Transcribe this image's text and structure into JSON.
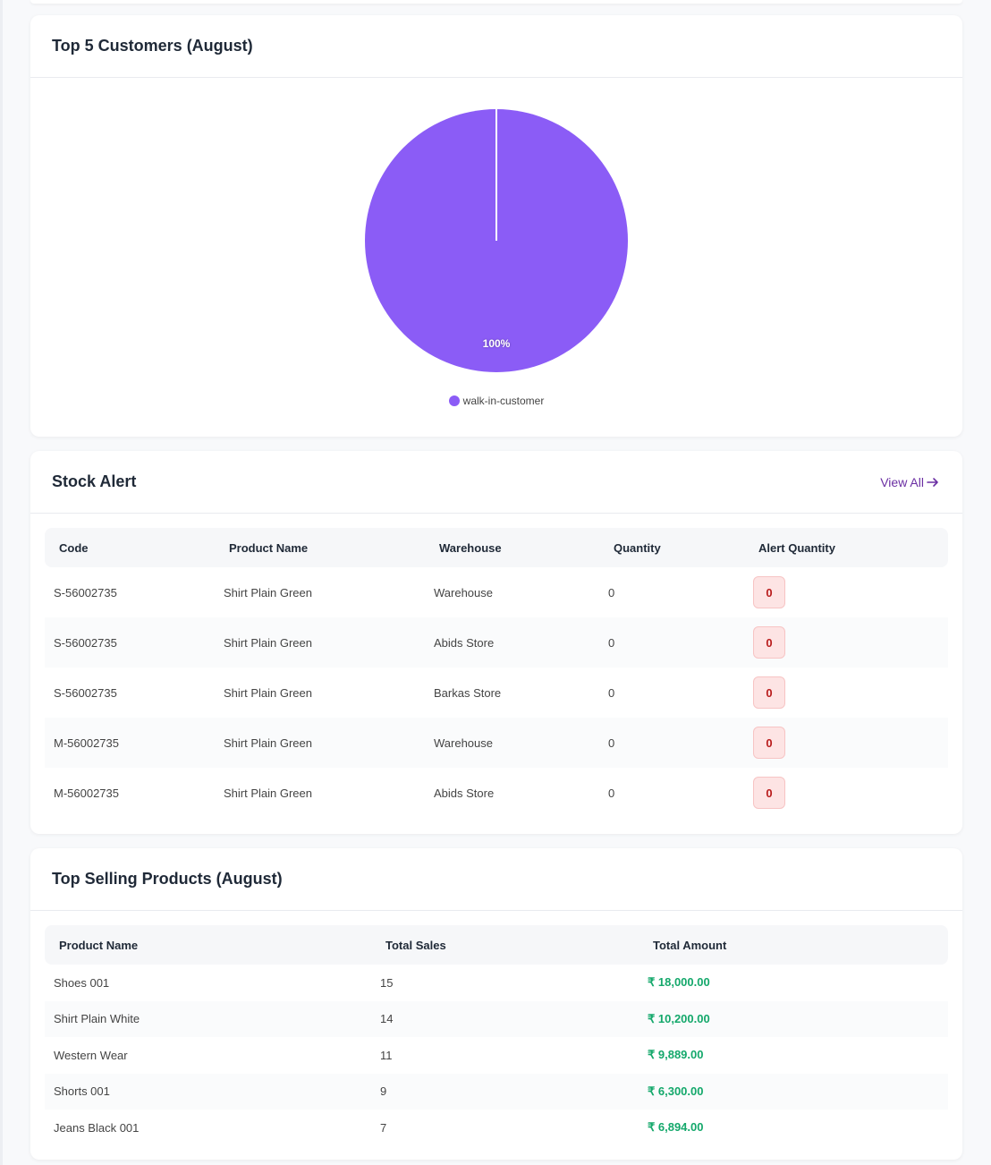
{
  "top_customers": {
    "title": "Top 5 Customers (August)",
    "chart_data": {
      "type": "pie",
      "slices": [
        {
          "label": "walk-in-customer",
          "value": 100,
          "percent": "100%",
          "color": "#8b5cf6"
        }
      ]
    }
  },
  "stock_alert": {
    "title": "Stock Alert",
    "view_all": "View All",
    "columns": [
      "Code",
      "Product Name",
      "Warehouse",
      "Quantity",
      "Alert Quantity"
    ],
    "rows": [
      {
        "code": "S-56002735",
        "product": "Shirt Plain Green",
        "warehouse": "Warehouse",
        "quantity": "0",
        "alert": "0"
      },
      {
        "code": "S-56002735",
        "product": "Shirt Plain Green",
        "warehouse": "Abids Store",
        "quantity": "0",
        "alert": "0"
      },
      {
        "code": "S-56002735",
        "product": "Shirt Plain Green",
        "warehouse": "Barkas Store",
        "quantity": "0",
        "alert": "0"
      },
      {
        "code": "M-56002735",
        "product": "Shirt Plain Green",
        "warehouse": "Warehouse",
        "quantity": "0",
        "alert": "0"
      },
      {
        "code": "M-56002735",
        "product": "Shirt Plain Green",
        "warehouse": "Abids Store",
        "quantity": "0",
        "alert": "0"
      }
    ]
  },
  "top_selling": {
    "title": "Top Selling Products (August)",
    "columns": [
      "Product Name",
      "Total Sales",
      "Total Amount"
    ],
    "rows": [
      {
        "product": "Shoes 001",
        "sales": "15",
        "amount": "₹ 18,000.00"
      },
      {
        "product": "Shirt Plain White",
        "sales": "14",
        "amount": "₹ 10,200.00"
      },
      {
        "product": "Western Wear",
        "sales": "11",
        "amount": "₹ 9,889.00"
      },
      {
        "product": "Shorts 001",
        "sales": "9",
        "amount": "₹ 6,300.00"
      },
      {
        "product": "Jeans Black 001",
        "sales": "7",
        "amount": "₹ 6,894.00"
      }
    ]
  },
  "colors": {
    "accent": "#6b2fa3",
    "pie": "#8b5cf6",
    "alert_bg": "#fde4e4",
    "alert_text": "#b91c1c",
    "amount": "#14a86b"
  },
  "icons": {
    "view_all": "arrow-right-icon"
  }
}
